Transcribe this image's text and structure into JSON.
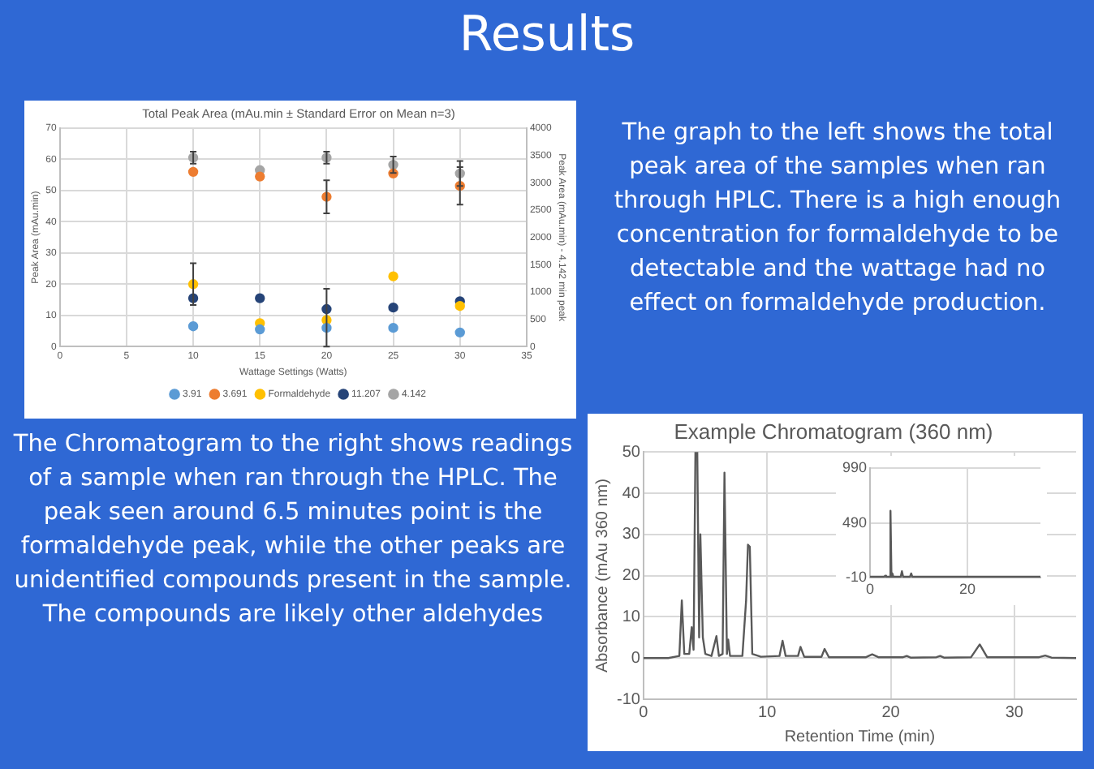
{
  "chart_data": [
    {
      "type": "other",
      "title": "Results"
    },
    {
      "type": "scatter",
      "title": "Total Peak Area (mAu.min ± Standard Error on Mean n=3)",
      "xlabel": "Wattage Settings (Watts)",
      "ylabel": "Peak Area (mAu.min)",
      "y2label": "Peak Area (mAu.min) - 4.142 min peak",
      "x": [
        10,
        15,
        20,
        25,
        30
      ],
      "xlim": [
        0,
        35
      ],
      "xticks": [
        0,
        5,
        10,
        15,
        20,
        25,
        30,
        35
      ],
      "ylim": [
        0,
        70
      ],
      "yticks": [
        0,
        10,
        20,
        30,
        40,
        50,
        60,
        70
      ],
      "y2lim": [
        0,
        4000
      ],
      "y2ticks": [
        0,
        500,
        1000,
        1500,
        2000,
        2500,
        3000,
        3500,
        4000
      ],
      "grid": true,
      "legend": "bottom",
      "marker": "circle",
      "series": [
        {
          "name": "3.91",
          "color": "#5b9bd5",
          "values": [
            6.5,
            5.5,
            6,
            6,
            4.5
          ]
        },
        {
          "name": "3.691",
          "color": "#ed7d31",
          "values": [
            56,
            54.5,
            48,
            55.5,
            51.5
          ],
          "errors": [
            null,
            null,
            5.3,
            null,
            6
          ]
        },
        {
          "name": "Formaldehyde",
          "color": "#ffc000",
          "values": [
            20,
            7.5,
            8.5,
            22.5,
            13
          ],
          "errors": [
            6.7,
            null,
            [
              0,
              18.5
            ],
            null,
            null
          ]
        },
        {
          "name": "11.207",
          "color": "#264478",
          "values": [
            15.5,
            15.5,
            12,
            12.5,
            14.5
          ]
        },
        {
          "name": "4.142",
          "color": "#a5a5a5",
          "axis": "y2",
          "values": [
            3460,
            3230,
            3460,
            3330,
            3170
          ],
          "errors": [
            110,
            null,
            110,
            150,
            230
          ]
        }
      ]
    },
    {
      "type": "other",
      "annotations": [
        "The graph to the left shows the total peak area of the samples when ran through HPLC. There is a high enough concentration for formaldehyde to be detectable and the wattage had no effect on formaldehyde production."
      ]
    },
    {
      "type": "other",
      "annotations": [
        "The Chromatogram to the right shows readings of a sample when ran through the HPLC. The peak seen around 6.5 minutes point is the formaldehyde peak, while the other peaks are unidentified compounds present in the sample. The compounds are likely other aldehydes"
      ]
    },
    {
      "type": "line",
      "title": "Example Chromatogram (360 nm)",
      "xlabel": "Retention Time (min)",
      "ylabel": "Absorbance (mAu 360 nm)",
      "xlim": [
        0,
        35
      ],
      "xticks": [
        0,
        10,
        20,
        30
      ],
      "ylim": [
        -10,
        50
      ],
      "yticks": [
        -10,
        0,
        10,
        20,
        30,
        40,
        50
      ],
      "grid": true,
      "series": [
        {
          "color": "#595959",
          "x": [
            0,
            2,
            2.9,
            3.1,
            3.3,
            3.7,
            3.9,
            4.05,
            4.2,
            4.35,
            4.5,
            4.6,
            4.8,
            5.0,
            5.5,
            5.9,
            6.1,
            6.4,
            6.55,
            6.75,
            6.85,
            7.0,
            8.0,
            8.3,
            8.45,
            8.6,
            8.8,
            9.5,
            11.0,
            11.25,
            11.5,
            12.5,
            12.7,
            13.0,
            14.4,
            14.65,
            15.0,
            18.0,
            18.5,
            19.0,
            21.0,
            21.3,
            21.6,
            23.7,
            24.0,
            24.3,
            26.5,
            27.2,
            27.8,
            32,
            32.5,
            33,
            35
          ],
          "values": [
            0,
            0,
            0.5,
            14,
            1,
            1,
            7.5,
            2,
            50,
            50,
            5,
            30,
            5,
            1,
            0.5,
            5.3,
            0.5,
            1,
            45,
            1,
            4.5,
            0.5,
            0.5,
            14,
            27.5,
            27,
            1,
            0.3,
            0.5,
            4.2,
            0.5,
            0.5,
            2.7,
            0.3,
            0.3,
            2.2,
            0.2,
            0.2,
            0.9,
            0.2,
            0.2,
            0.5,
            0.1,
            0.2,
            0.5,
            0.1,
            0.2,
            3.3,
            0.2,
            0.2,
            0.6,
            0.1,
            0
          ]
        }
      ]
    },
    {
      "type": "line",
      "xlim": [
        0,
        35
      ],
      "xticks": [
        0,
        20
      ],
      "ylim": [
        -10,
        990
      ],
      "yticks": [
        -10,
        490,
        990
      ],
      "grid": true,
      "series": [
        {
          "color": "#595959",
          "x": [
            0,
            2.9,
            3.1,
            3.3,
            4.0,
            4.2,
            4.4,
            4.6,
            4.8,
            6.3,
            6.55,
            6.8,
            8.2,
            8.45,
            8.7,
            35
          ],
          "values": [
            0,
            0,
            10,
            0,
            0,
            600,
            0,
            30,
            0,
            0,
            50,
            0,
            0,
            30,
            0,
            0
          ]
        }
      ]
    }
  ]
}
